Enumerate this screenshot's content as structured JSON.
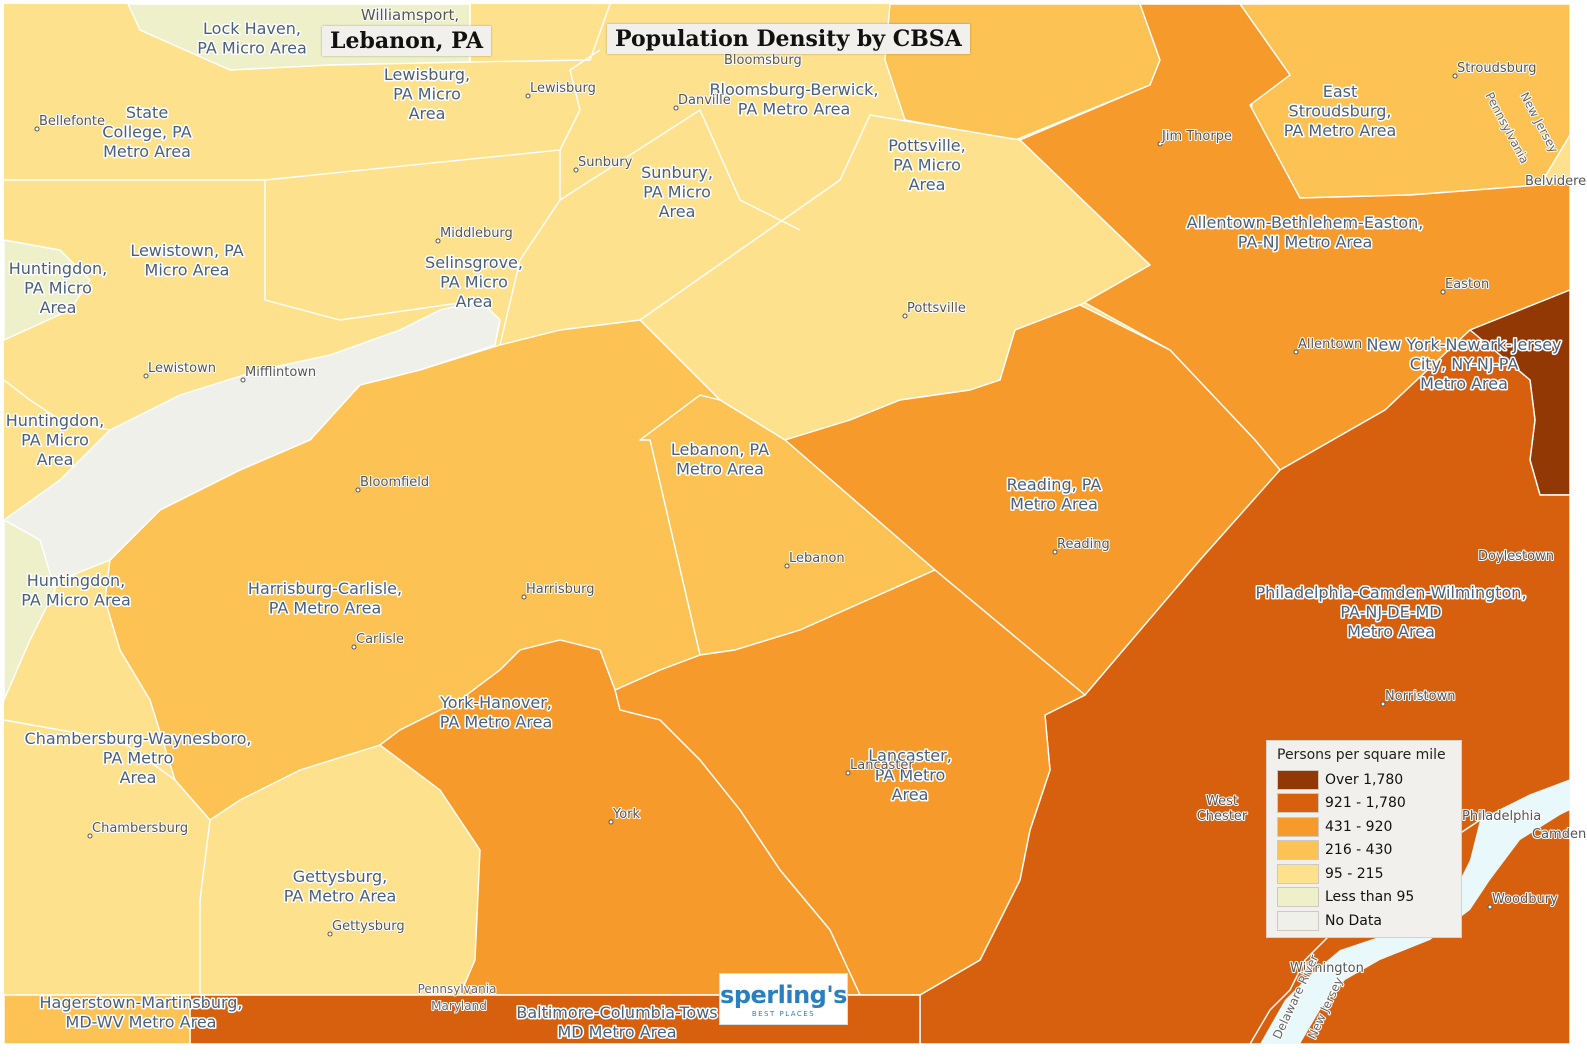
{
  "header": {
    "location_title": "Lebanon, PA",
    "map_title": "Population Density by CBSA"
  },
  "legend": {
    "title": "Persons per square mile",
    "classes": [
      {
        "label": "Over 1,780",
        "color": "#913805"
      },
      {
        "label": "921 - 1,780",
        "color": "#d7600f"
      },
      {
        "label": "431 - 920",
        "color": "#f69a2b"
      },
      {
        "label": "216 - 430",
        "color": "#fcc253"
      },
      {
        "label": "95 - 215",
        "color": "#fee18d"
      },
      {
        "label": "Less than 95",
        "color": "#edf0c8"
      },
      {
        "label": "No Data",
        "color": "#f0f0eb"
      }
    ]
  },
  "colors": {
    "water": "#e9f9fb",
    "boundary": "#ffffff",
    "cbsa_label": "#4a5f7a",
    "city_label": "#555555",
    "logo": "#2a7fc0"
  },
  "cbsa_labels": [
    {
      "id": "lock-haven",
      "lines": [
        "Lock Haven,",
        "PA Micro Area"
      ]
    },
    {
      "id": "state-college",
      "lines": [
        "State",
        "College, PA",
        "Metro Area"
      ]
    },
    {
      "id": "lewisburg",
      "lines": [
        "Lewisburg,",
        "PA Micro",
        "Area"
      ]
    },
    {
      "id": "bloomsburg",
      "lines": [
        "Bloomsburg-Berwick,",
        "PA Metro Area"
      ]
    },
    {
      "id": "sunbury",
      "lines": [
        "Sunbury,",
        "PA Micro",
        "Area"
      ]
    },
    {
      "id": "pottsville",
      "lines": [
        "Pottsville,",
        "PA Micro",
        "Area"
      ]
    },
    {
      "id": "east-stroudsburg",
      "lines": [
        "East",
        "Stroudsburg,",
        "PA Metro Area"
      ]
    },
    {
      "id": "allentown",
      "lines": [
        "Allentown-Bethlehem-Easton,",
        "PA-NJ Metro Area"
      ]
    },
    {
      "id": "new-york",
      "lines": [
        "New York-Newark-Jersey",
        "City, NY-NJ-PA",
        "Metro Area"
      ]
    },
    {
      "id": "lewistown",
      "lines": [
        "Lewistown, PA",
        "Micro Area"
      ]
    },
    {
      "id": "selinsgrove",
      "lines": [
        "Selinsgrove,",
        "PA Micro",
        "Area"
      ]
    },
    {
      "id": "huntingdon-1",
      "lines": [
        "Huntingdon,",
        "PA Micro",
        "Area"
      ]
    },
    {
      "id": "huntingdon-2",
      "lines": [
        "Huntingdon,",
        "PA Micro",
        "Area"
      ]
    },
    {
      "id": "huntingdon-3",
      "lines": [
        "Huntingdon,",
        "PA Micro Area"
      ]
    },
    {
      "id": "lebanon",
      "lines": [
        "Lebanon, PA",
        "Metro Area"
      ]
    },
    {
      "id": "reading",
      "lines": [
        "Reading, PA",
        "Metro Area"
      ]
    },
    {
      "id": "philadelphia",
      "lines": [
        "Philadelphia-Camden-Wilmington,",
        "PA-NJ-DE-MD",
        "Metro Area"
      ]
    },
    {
      "id": "harrisburg",
      "lines": [
        "Harrisburg-Carlisle,",
        "PA Metro Area"
      ]
    },
    {
      "id": "york",
      "lines": [
        "York-Hanover,",
        "PA Metro Area"
      ]
    },
    {
      "id": "lancaster",
      "lines": [
        "Lancaster,",
        "PA Metro",
        "Area"
      ]
    },
    {
      "id": "chambersburg",
      "lines": [
        "Chambersburg-Waynesboro,",
        "PA Metro",
        "Area"
      ]
    },
    {
      "id": "gettysburg",
      "lines": [
        "Gettysburg,",
        "PA Metro Area"
      ]
    },
    {
      "id": "hagerstown",
      "lines": [
        "Hagerstown-Martinsburg,",
        "MD-WV Metro Area"
      ]
    },
    {
      "id": "baltimore",
      "lines": [
        "Baltimore-Columbia-Tows",
        "MD Metro Area"
      ]
    }
  ],
  "cities": [
    {
      "id": "williamsport",
      "name": "Williamsport,"
    },
    {
      "id": "bloomsburg-city",
      "name": "Bloomsburg"
    },
    {
      "id": "stroudsburg",
      "name": "Stroudsburg"
    },
    {
      "id": "bellefonte",
      "name": "Bellefonte"
    },
    {
      "id": "lewisburg-city",
      "name": "Lewisburg"
    },
    {
      "id": "danville",
      "name": "Danville"
    },
    {
      "id": "jim-thorpe",
      "name": "Jim Thorpe"
    },
    {
      "id": "belvidere",
      "name": "Belvidere"
    },
    {
      "id": "sunbury-city",
      "name": "Sunbury"
    },
    {
      "id": "middleburg",
      "name": "Middleburg"
    },
    {
      "id": "pottsville-city",
      "name": "Pottsville"
    },
    {
      "id": "easton",
      "name": "Easton"
    },
    {
      "id": "allentown-city",
      "name": "Allentown"
    },
    {
      "id": "lewistown-city",
      "name": "Lewistown"
    },
    {
      "id": "mifflintown",
      "name": "Mifflintown"
    },
    {
      "id": "bloomfield",
      "name": "Bloomfield"
    },
    {
      "id": "reading-city",
      "name": "Reading"
    },
    {
      "id": "lebanon-city",
      "name": "Lebanon"
    },
    {
      "id": "doylestown",
      "name": "Doylestown"
    },
    {
      "id": "harrisburg-city",
      "name": "Harrisburg"
    },
    {
      "id": "carlisle",
      "name": "Carlisle"
    },
    {
      "id": "norristown",
      "name": "Norristown"
    },
    {
      "id": "lancaster-city",
      "name": "Lancaster"
    },
    {
      "id": "york-city",
      "name": "York"
    },
    {
      "id": "west-chester",
      "name": "West Chester"
    },
    {
      "id": "philadelphia-city",
      "name": "Philadelphia"
    },
    {
      "id": "camden",
      "name": "Camden"
    },
    {
      "id": "chambersburg-city",
      "name": "Chambersburg"
    },
    {
      "id": "woodbury",
      "name": "Woodbury"
    },
    {
      "id": "gettysburg-city",
      "name": "Gettysburg"
    },
    {
      "id": "wilmington",
      "name": "Wilmington"
    }
  ],
  "state_labels": [
    {
      "id": "pa-nj-pennsylvania",
      "name": "Pennsylvania"
    },
    {
      "id": "pa-nj-new-jersey",
      "name": "New Jersey"
    },
    {
      "id": "pa-md-pennsylvania",
      "name": "Pennsylvania"
    },
    {
      "id": "pa-md-maryland",
      "name": "Maryland"
    },
    {
      "id": "delaware-river",
      "name": "Delaware River"
    },
    {
      "id": "de-nj-new-jersey",
      "name": "New Jersey"
    }
  ],
  "logo": {
    "name": "sperling's",
    "tagline": "BEST PLACES"
  }
}
